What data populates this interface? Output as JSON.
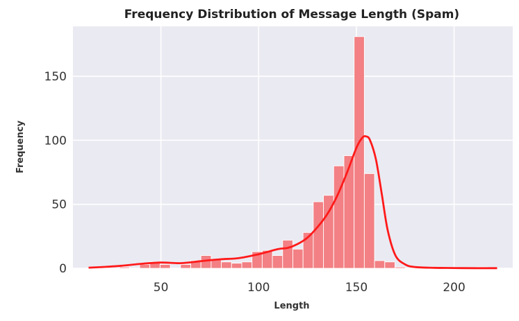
{
  "chart_data": {
    "type": "bar",
    "title": "Frequency Distribution of Message Length (Spam)",
    "xlabel": "Length",
    "ylabel": "Frequency",
    "xlim": [
      5,
      230
    ],
    "ylim": [
      0,
      189
    ],
    "grid": true,
    "bar_color": "#F28084",
    "bar_edge_color": "#ffffff",
    "kde_color": "#FF1A1A",
    "plot_background": "#EAEAF2",
    "x_ticks": [
      50,
      100,
      150,
      200
    ],
    "y_ticks": [
      0,
      50,
      100,
      150
    ],
    "bin_edges": [
      13,
      18.22,
      23.45,
      28.67,
      33.9,
      39.12,
      44.35,
      49.57,
      54.8,
      60.02,
      65.25,
      70.47,
      75.7,
      80.92,
      86.15,
      91.37,
      96.6,
      101.82,
      107.05,
      112.27,
      117.5,
      122.72,
      127.95,
      133.17,
      138.4,
      143.62,
      148.85,
      154.07,
      159.3,
      164.52,
      169.75,
      174.97,
      180.2,
      185.42,
      190.65,
      195.87,
      201.1,
      206.32,
      211.55,
      216.77,
      222
    ],
    "counts": [
      0,
      0,
      0,
      1,
      0,
      3,
      5,
      3,
      0,
      3,
      6,
      10,
      7,
      5,
      4,
      5,
      13,
      14,
      10,
      22,
      15,
      28,
      52,
      57,
      80,
      88,
      181,
      74,
      6,
      5,
      1,
      0,
      0,
      0,
      0,
      0,
      0,
      0,
      1,
      0
    ],
    "kde": {
      "x": [
        13,
        20,
        30,
        40,
        50,
        60,
        70,
        80,
        90,
        100,
        110,
        115,
        120,
        125,
        130,
        135,
        140,
        145,
        150,
        153,
        155,
        157,
        160,
        163,
        166,
        170,
        175,
        180,
        190,
        200,
        210,
        222
      ],
      "y": [
        0.5,
        1,
        2,
        3.5,
        4.5,
        4,
        5.5,
        7,
        8,
        11,
        15,
        16,
        19,
        24,
        32,
        42,
        56,
        74,
        94,
        102,
        103,
        100,
        85,
        58,
        30,
        10,
        3,
        1,
        0.4,
        0.2,
        0.1,
        0.1
      ]
    }
  }
}
